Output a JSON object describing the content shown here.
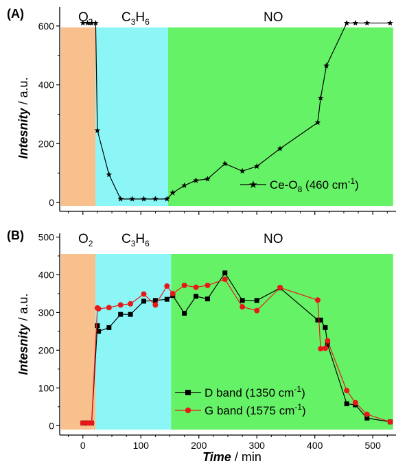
{
  "colors": {
    "o2": "#F8C08C",
    "c3h6": "#8CF6F6",
    "no": "#66F266",
    "series_black": "#000000",
    "series_red": "#E81818"
  },
  "panels": {
    "a": {
      "label": "(A)",
      "phases": {
        "o2_main": "O",
        "o2_sub": "2",
        "c3h6_c": "C",
        "c3h6_3": "3",
        "c3h6_h": "H",
        "c3h6_6": "6",
        "no": "NO"
      }
    },
    "b": {
      "label": "(B)",
      "phases": {
        "o2_main": "O",
        "o2_sub": "2",
        "c3h6_c": "C",
        "c3h6_3": "3",
        "c3h6_h": "H",
        "c3h6_6": "6",
        "no": "NO"
      }
    }
  },
  "axes": {
    "ylabel_italic": "Intesnity",
    "ylabel_rest": " / a.u.",
    "xlabel_bold": "Time",
    "xlabel_rest": " / min"
  },
  "legend": {
    "a_main": "Ce-O",
    "a_sub": "8",
    "a_rest": " (460 cm",
    "a_sup": "-1",
    "a_end": ")",
    "b_d_main": "D band (1350 cm",
    "b_d_sup": "-1",
    "b_d_end": ")",
    "b_g_main": "G band (1575 cm",
    "b_g_sup": "-1",
    "b_g_end": ")"
  },
  "chart_data": [
    {
      "type": "line",
      "panel": "A",
      "xlim": [
        -40,
        540
      ],
      "ylim": [
        -30,
        665
      ],
      "xticks": [
        0,
        100,
        200,
        300,
        400,
        500
      ],
      "yticks": [
        0,
        200,
        400,
        600
      ],
      "regions": [
        {
          "name": "O2",
          "x": [
            -38,
            22
          ]
        },
        {
          "name": "C3H6",
          "x": [
            22,
            147
          ]
        },
        {
          "name": "NO",
          "x": [
            147,
            535
          ]
        }
      ],
      "series": [
        {
          "name": "Ce-O8 (460 cm-1)",
          "marker": "star",
          "color": "#000000",
          "x": [
            0,
            8,
            15,
            22,
            25,
            45,
            65,
            85,
            105,
            125,
            145,
            155,
            175,
            195,
            215,
            245,
            275,
            300,
            340,
            405,
            410,
            420,
            455,
            470,
            490,
            530
          ],
          "y": [
            610,
            610,
            610,
            610,
            245,
            95,
            12,
            12,
            12,
            12,
            12,
            33,
            58,
            75,
            80,
            132,
            107,
            123,
            183,
            272,
            355,
            465,
            610,
            610,
            610,
            610
          ]
        }
      ]
    },
    {
      "type": "line",
      "panel": "B",
      "xlim": [
        -40,
        540
      ],
      "ylim": [
        -25,
        510
      ],
      "xticks": [
        0,
        100,
        200,
        300,
        400,
        500
      ],
      "yticks": [
        0,
        100,
        200,
        300,
        400,
        500
      ],
      "regions": [
        {
          "name": "O2",
          "x": [
            -38,
            22
          ]
        },
        {
          "name": "C3H6",
          "x": [
            22,
            152
          ]
        },
        {
          "name": "NO",
          "x": [
            152,
            535
          ]
        }
      ],
      "series": [
        {
          "name": "D band (1350 cm-1)",
          "marker": "square",
          "color": "#000000",
          "x": [
            0,
            8,
            15,
            25,
            27,
            45,
            65,
            82,
            105,
            125,
            145,
            155,
            175,
            195,
            215,
            245,
            275,
            300,
            340,
            405,
            410,
            418,
            422,
            455,
            470,
            490,
            530
          ],
          "y": [
            7,
            7,
            7,
            265,
            250,
            260,
            295,
            295,
            330,
            332,
            335,
            345,
            298,
            343,
            336,
            405,
            332,
            332,
            365,
            280,
            280,
            260,
            215,
            58,
            55,
            20,
            10
          ]
        },
        {
          "name": "G band (1575 cm-1)",
          "marker": "circle",
          "color": "#E81818",
          "x": [
            0,
            8,
            15,
            25,
            27,
            45,
            65,
            82,
            105,
            125,
            145,
            155,
            175,
            195,
            215,
            245,
            275,
            300,
            340,
            405,
            410,
            418,
            422,
            455,
            470,
            490,
            530
          ],
          "y": [
            7,
            7,
            7,
            312,
            310,
            313,
            320,
            323,
            349,
            320,
            370,
            350,
            372,
            367,
            372,
            388,
            315,
            305,
            366,
            333,
            204,
            205,
            225,
            93,
            61,
            30,
            10
          ]
        }
      ]
    }
  ]
}
